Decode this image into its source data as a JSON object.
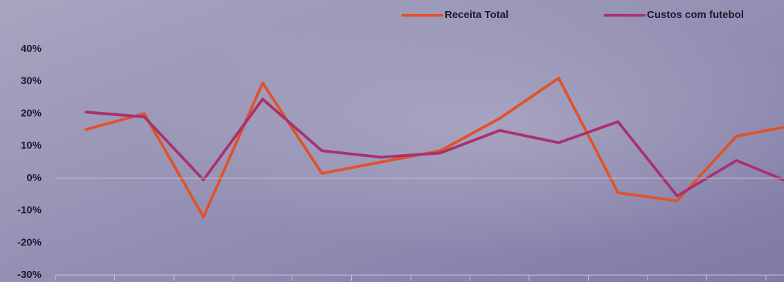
{
  "chart_data": {
    "type": "line",
    "categories": [
      null,
      null,
      null,
      null,
      null,
      null,
      null,
      null,
      null,
      null,
      null,
      null,
      null
    ],
    "series": [
      {
        "name": "Receita Total",
        "color": "#e0522a",
        "values": [
          15,
          20,
          -12,
          29.5,
          1.5,
          5,
          8.5,
          18.5,
          31,
          -4.5,
          -7,
          13,
          16.5
        ]
      },
      {
        "name": "Custos com futebol",
        "color": "#a8326e",
        "values": [
          20.5,
          19,
          -0.5,
          24.5,
          8.5,
          6.5,
          7.8,
          14.8,
          11,
          17.5,
          -5.5,
          5.5,
          -2
        ]
      }
    ],
    "ylim": [
      -30,
      40
    ],
    "yticks": [
      {
        "value": -30,
        "label": "-30%"
      },
      {
        "value": -20,
        "label": "-20%"
      },
      {
        "value": -10,
        "label": "-10%"
      },
      {
        "value": 0,
        "label": "0%"
      },
      {
        "value": 10,
        "label": "10%"
      },
      {
        "value": 20,
        "label": "20%"
      },
      {
        "value": 30,
        "label": "30%"
      },
      {
        "value": 40,
        "label": "40%"
      }
    ],
    "legend": "top"
  }
}
